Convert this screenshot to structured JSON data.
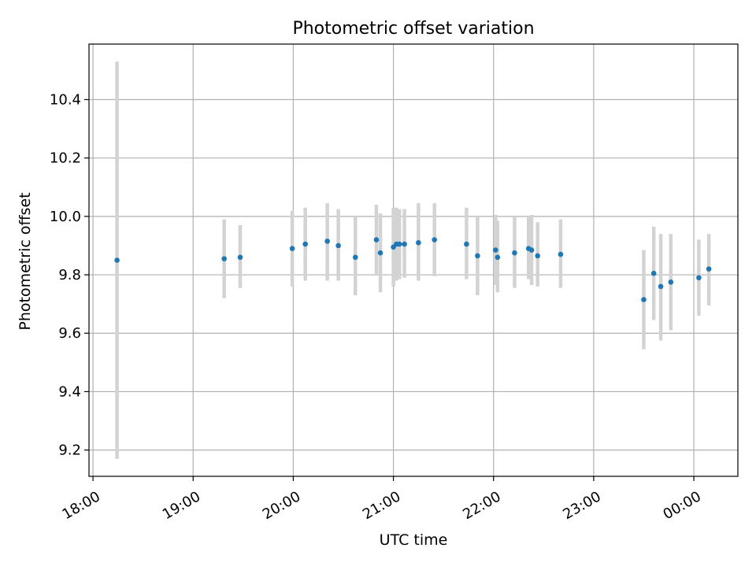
{
  "chart_data": {
    "type": "scatter",
    "title": "Photometric offset variation",
    "xlabel": "UTC time",
    "ylabel": "Photometric offset",
    "x_unit": "UTC time (hours)",
    "xlim": [
      17.96,
      24.44
    ],
    "ylim": [
      9.11,
      10.59
    ],
    "x_ticks": [
      {
        "value": 18,
        "label": "18:00"
      },
      {
        "value": 19,
        "label": "19:00"
      },
      {
        "value": 20,
        "label": "20:00"
      },
      {
        "value": 21,
        "label": "21:00"
      },
      {
        "value": 22,
        "label": "22:00"
      },
      {
        "value": 23,
        "label": "23:00"
      },
      {
        "value": 24,
        "label": "00:00"
      }
    ],
    "y_ticks": [
      {
        "value": 9.2,
        "label": "9.2"
      },
      {
        "value": 9.4,
        "label": "9.4"
      },
      {
        "value": 9.6,
        "label": "9.6"
      },
      {
        "value": 9.8,
        "label": "9.8"
      },
      {
        "value": 10.0,
        "label": "10.0"
      },
      {
        "value": 10.2,
        "label": "10.2"
      },
      {
        "value": 10.4,
        "label": "10.4"
      }
    ],
    "grid": true,
    "legend": "none",
    "colors": {
      "point": "#1f77b4",
      "errorbar": "#d3d3d3",
      "grid": "#b0b0b0"
    },
    "points": [
      {
        "x": 18.24,
        "y": 9.85,
        "lo": 9.17,
        "hi": 10.53
      },
      {
        "x": 19.31,
        "y": 9.855,
        "lo": 9.72,
        "hi": 9.99
      },
      {
        "x": 19.47,
        "y": 9.86,
        "lo": 9.755,
        "hi": 9.97
      },
      {
        "x": 19.99,
        "y": 9.89,
        "lo": 9.76,
        "hi": 10.02
      },
      {
        "x": 20.12,
        "y": 9.905,
        "lo": 9.78,
        "hi": 10.03
      },
      {
        "x": 20.34,
        "y": 9.915,
        "lo": 9.78,
        "hi": 10.045
      },
      {
        "x": 20.45,
        "y": 9.9,
        "lo": 9.78,
        "hi": 10.025
      },
      {
        "x": 20.62,
        "y": 9.86,
        "lo": 9.73,
        "hi": 10.0
      },
      {
        "x": 20.83,
        "y": 9.92,
        "lo": 9.8,
        "hi": 10.04
      },
      {
        "x": 20.87,
        "y": 9.875,
        "lo": 9.74,
        "hi": 10.01
      },
      {
        "x": 21.0,
        "y": 9.895,
        "lo": 9.76,
        "hi": 10.03
      },
      {
        "x": 21.03,
        "y": 9.905,
        "lo": 9.78,
        "hi": 10.03
      },
      {
        "x": 21.06,
        "y": 9.905,
        "lo": 9.785,
        "hi": 10.025
      },
      {
        "x": 21.11,
        "y": 9.905,
        "lo": 9.79,
        "hi": 10.025
      },
      {
        "x": 21.25,
        "y": 9.91,
        "lo": 9.78,
        "hi": 10.045
      },
      {
        "x": 21.41,
        "y": 9.92,
        "lo": 9.795,
        "hi": 10.045
      },
      {
        "x": 21.73,
        "y": 9.905,
        "lo": 9.785,
        "hi": 10.03
      },
      {
        "x": 21.84,
        "y": 9.865,
        "lo": 9.73,
        "hi": 10.0
      },
      {
        "x": 22.02,
        "y": 9.885,
        "lo": 9.765,
        "hi": 10.005
      },
      {
        "x": 22.04,
        "y": 9.86,
        "lo": 9.74,
        "hi": 9.985
      },
      {
        "x": 22.21,
        "y": 9.875,
        "lo": 9.755,
        "hi": 10.0
      },
      {
        "x": 22.35,
        "y": 9.89,
        "lo": 9.785,
        "hi": 10.0
      },
      {
        "x": 22.38,
        "y": 9.885,
        "lo": 9.765,
        "hi": 10.005
      },
      {
        "x": 22.44,
        "y": 9.865,
        "lo": 9.76,
        "hi": 9.98
      },
      {
        "x": 22.67,
        "y": 9.87,
        "lo": 9.755,
        "hi": 9.99
      },
      {
        "x": 23.5,
        "y": 9.715,
        "lo": 9.545,
        "hi": 9.885
      },
      {
        "x": 23.6,
        "y": 9.805,
        "lo": 9.645,
        "hi": 9.965
      },
      {
        "x": 23.67,
        "y": 9.76,
        "lo": 9.575,
        "hi": 9.94
      },
      {
        "x": 23.77,
        "y": 9.775,
        "lo": 9.61,
        "hi": 9.94
      },
      {
        "x": 24.05,
        "y": 9.79,
        "lo": 9.66,
        "hi": 9.92
      },
      {
        "x": 24.15,
        "y": 9.82,
        "lo": 9.695,
        "hi": 9.94
      }
    ]
  }
}
